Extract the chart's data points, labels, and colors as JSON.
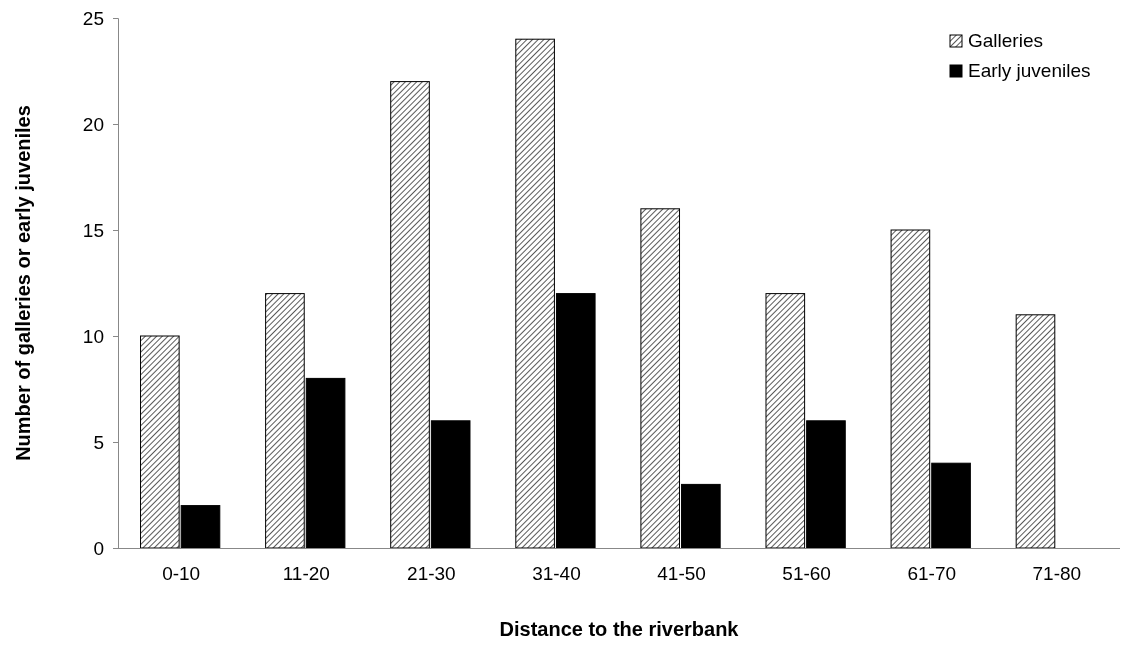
{
  "chart_data": {
    "type": "bar",
    "xlabel": "Distance to the riverbank",
    "ylabel": "Number of galleries or early juveniles",
    "categories": [
      "0-10",
      "11-20",
      "21-30",
      "31-40",
      "41-50",
      "51-60",
      "61-70",
      "71-80"
    ],
    "series": [
      {
        "name": "Galleries",
        "color": "#000000",
        "values": [
          10,
          12,
          22,
          24,
          16,
          12,
          15,
          11
        ]
      },
      {
        "name": "Early juveniles",
        "color": "#000000",
        "values": [
          2,
          8,
          6,
          12,
          3,
          6,
          4,
          0
        ]
      }
    ],
    "ylim": [
      0,
      25
    ],
    "yticks": [
      0,
      5,
      10,
      15,
      20,
      25
    ],
    "grid": false,
    "legend": "top right"
  }
}
